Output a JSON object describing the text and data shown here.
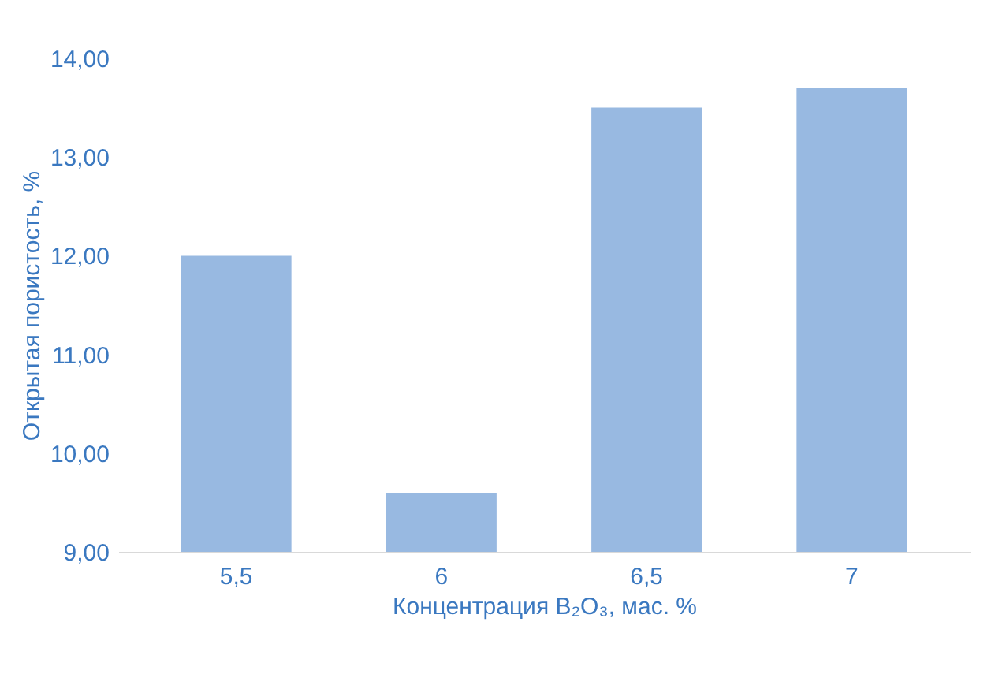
{
  "chart_data": {
    "type": "bar",
    "xlabel": "Концентрация B₂O₃, мас. %",
    "ylabel": "Открытая пористость, %",
    "categories": [
      "5,5",
      "6",
      "6,5",
      "7"
    ],
    "series": [
      {
        "color": "#98b9e1",
        "values": [
          12.0,
          9.6,
          13.5,
          13.7
        ]
      }
    ],
    "ylim": [
      9,
      14
    ],
    "yticks": [
      {
        "value": 9,
        "label": "9,00"
      },
      {
        "value": 10,
        "label": "10,00"
      },
      {
        "value": 11,
        "label": "11,00"
      },
      {
        "value": 12,
        "label": "12,00"
      },
      {
        "value": 13,
        "label": "13,00"
      },
      {
        "value": 14,
        "label": "14,00"
      }
    ],
    "grid": false
  }
}
